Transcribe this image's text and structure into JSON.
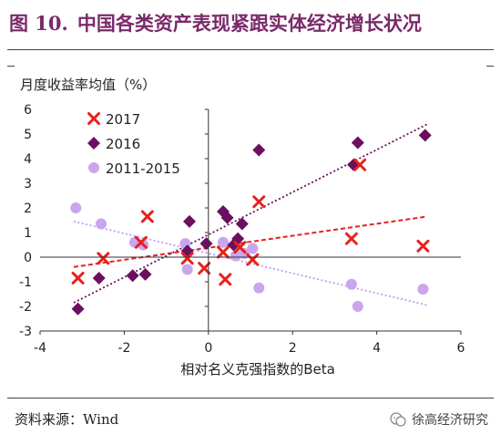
{
  "figure": {
    "number": "图 10.",
    "title": "中国各类资产表现紧跟实体经济增长状况"
  },
  "source_text": "资料来源：Wind",
  "brand_text": "徐高经济研究",
  "colors": {
    "title": "#7a2a6a",
    "s2017": "#e8211c",
    "s2016": "#6b0f5f",
    "s20112015": "#c9a6ee",
    "trend2017": "#e8211c",
    "trend2016": "#6b0f5f",
    "trend20112015": "#c39bf0"
  },
  "chart_data": {
    "type": "scatter",
    "ylabel": "月度收益率均值（%）",
    "xlabel": "相对名义克强指数的Beta",
    "xlim": [
      -4,
      6
    ],
    "ylim": [
      -3,
      6
    ],
    "xticks": [
      -4,
      -2,
      0,
      2,
      4,
      6
    ],
    "yticks": [
      -3,
      -2,
      -1,
      0,
      1,
      2,
      3,
      4,
      5,
      6
    ],
    "legend_position": "top-left",
    "grid": false,
    "series": [
      {
        "name": "2017",
        "marker": "x",
        "color": "#e8211c",
        "points": [
          [
            -3.1,
            -0.85
          ],
          [
            -2.5,
            -0.05
          ],
          [
            -1.6,
            0.6
          ],
          [
            -1.45,
            1.65
          ],
          [
            -0.5,
            -0.05
          ],
          [
            -0.1,
            -0.45
          ],
          [
            0.35,
            0.2
          ],
          [
            0.4,
            -0.9
          ],
          [
            0.75,
            0.4
          ],
          [
            1.05,
            -0.1
          ],
          [
            1.2,
            2.25
          ],
          [
            3.4,
            0.75
          ],
          [
            3.6,
            3.75
          ],
          [
            5.1,
            0.45
          ]
        ],
        "trend": {
          "from": [
            -3.2,
            -0.4
          ],
          "to": [
            5.2,
            1.65
          ]
        }
      },
      {
        "name": "2016",
        "marker": "diamond",
        "color": "#6b0f5f",
        "points": [
          [
            -3.1,
            -2.1
          ],
          [
            -2.6,
            -0.85
          ],
          [
            -1.8,
            -0.75
          ],
          [
            -1.5,
            -0.7
          ],
          [
            -0.5,
            0.25
          ],
          [
            -0.45,
            1.45
          ],
          [
            -0.05,
            0.55
          ],
          [
            0.35,
            1.85
          ],
          [
            0.45,
            1.6
          ],
          [
            0.6,
            0.5
          ],
          [
            0.7,
            0.75
          ],
          [
            0.8,
            1.35
          ],
          [
            1.2,
            4.35
          ],
          [
            3.45,
            3.75
          ],
          [
            3.55,
            4.65
          ],
          [
            5.15,
            4.95
          ]
        ],
        "trend": {
          "from": [
            -3.2,
            -1.85
          ],
          "to": [
            5.2,
            5.4
          ]
        }
      },
      {
        "name": "2011-2015",
        "marker": "circle",
        "color": "#c9a6ee",
        "points": [
          [
            -3.15,
            2.0
          ],
          [
            -2.55,
            1.35
          ],
          [
            -1.75,
            0.6
          ],
          [
            -1.55,
            0.5
          ],
          [
            -0.55,
            0.55
          ],
          [
            -0.5,
            -0.5
          ],
          [
            0.35,
            0.6
          ],
          [
            0.65,
            0.05
          ],
          [
            0.85,
            0.15
          ],
          [
            1.05,
            0.35
          ],
          [
            1.2,
            -1.25
          ],
          [
            3.4,
            -1.1
          ],
          [
            3.55,
            -2.0
          ],
          [
            5.1,
            -1.3
          ]
        ],
        "trend": {
          "from": [
            -3.2,
            1.45
          ],
          "to": [
            5.2,
            -1.95
          ]
        }
      }
    ]
  }
}
